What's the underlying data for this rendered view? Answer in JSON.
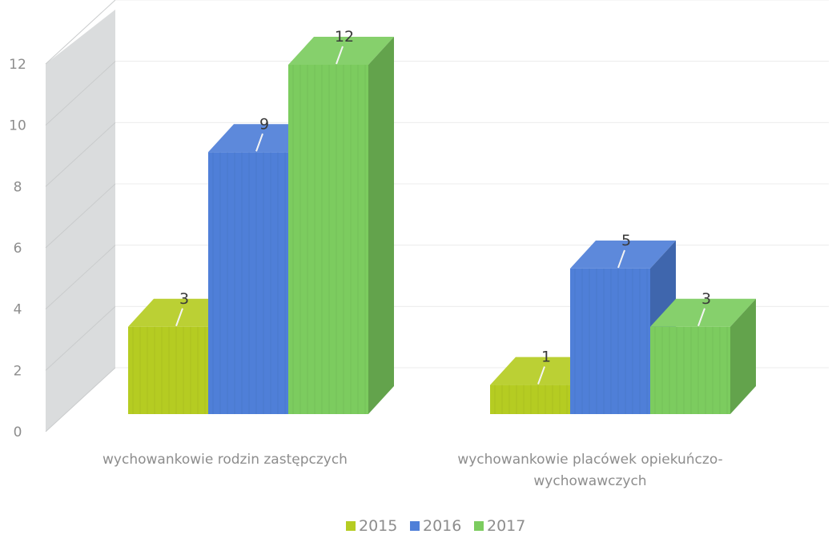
{
  "chart_data": {
    "type": "bar",
    "variant": "3d-clustered-column",
    "categories": [
      "wychowankowie rodzin zastępczych",
      "wychowankowie placówek opiekuńczo-wychowawczych"
    ],
    "category_lines": [
      [
        "wychowankowie rodzin zastępczych"
      ],
      [
        "wychowankowie placówek opiekuńczo-",
        "wychowawczych"
      ]
    ],
    "series": [
      {
        "name": "2015",
        "values": [
          3,
          1
        ],
        "color": "#b5cc22"
      },
      {
        "name": "2016",
        "values": [
          9,
          5
        ],
        "color": "#4f7fd8"
      },
      {
        "name": "2017",
        "values": [
          12,
          3
        ],
        "color": "#7ccc5f"
      }
    ],
    "data_labels": [
      [
        "3",
        "1"
      ],
      [
        "9",
        "5"
      ],
      [
        "12",
        "3"
      ]
    ],
    "yticks": [
      "0",
      "2",
      "4",
      "6",
      "8",
      "10",
      "12"
    ],
    "ylim": [
      0,
      12
    ],
    "grid": true,
    "legend_position": "bottom",
    "legend_labels": [
      "2015",
      "2016",
      "2017"
    ],
    "title": "",
    "xlabel": "",
    "ylabel": ""
  }
}
